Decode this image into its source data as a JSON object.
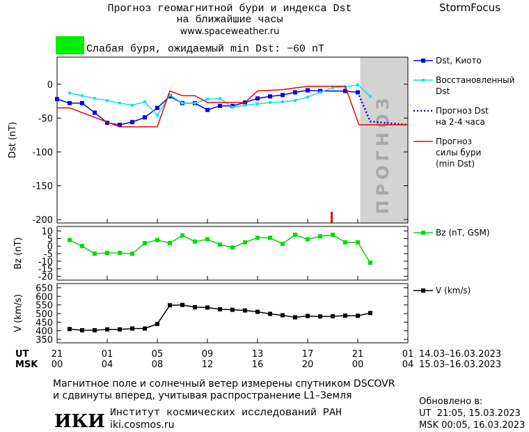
{
  "header": {
    "title": "Прогноз геомагнитной бури и индекса Dst",
    "subtitle": "на ближайшие часы",
    "url": "www.spaceweather.ru",
    "brand": "StormFocus",
    "status": "Слабая буря, ожидаемый min Dst: −60 nT",
    "status_color": "#00ee00"
  },
  "chart_data": [
    {
      "type": "line",
      "y_label": "Dst (nT)",
      "ylim": [
        -205,
        40
      ],
      "yticks": [
        0,
        -50,
        -100,
        -150,
        -200
      ],
      "forecast_label": "ПРОГНОЗ",
      "forecast_start": 24.2,
      "series": [
        {
          "name": [
            "Dst, Киото"
          ],
          "color": "#0000ee",
          "marker": "square",
          "x": [
            0,
            1,
            2,
            3,
            4,
            5,
            6,
            7,
            8,
            9,
            10,
            11,
            12,
            13,
            14,
            15,
            16,
            17,
            18,
            19,
            20,
            21,
            23,
            24
          ],
          "values": [
            -22,
            -28,
            -28,
            -42,
            -57,
            -60,
            -56,
            -49,
            -35,
            -18,
            -28,
            -28,
            -38,
            -32,
            -32,
            -27,
            -21,
            -18,
            -16,
            -12,
            -9,
            -10,
            -10,
            -12
          ]
        },
        {
          "name": [
            "Восстановленный",
            "Dst"
          ],
          "color": "#11e0ee",
          "marker": "small",
          "x": [
            1,
            2,
            3,
            4,
            5,
            6,
            7,
            8,
            9,
            10,
            11,
            12,
            13,
            14,
            15,
            16,
            17,
            18,
            19,
            20,
            21,
            22,
            23,
            24,
            25
          ],
          "values": [
            -13,
            -17,
            -21,
            -24,
            -28,
            -31,
            -26,
            -46,
            -16,
            -28,
            -28,
            -22,
            -21,
            -34,
            -31,
            -29,
            -27,
            -26,
            -24,
            -19,
            -12,
            -5,
            -4,
            -1,
            -18
          ]
        },
        {
          "name": [
            "Прогноз Dst",
            "на 2-4 часа"
          ],
          "color": "#0000cc",
          "dash": true,
          "x": [
            24,
            25,
            28
          ],
          "values": [
            -12,
            -55,
            -60
          ]
        },
        {
          "name": [
            "Прогноз",
            "силы бури",
            "(min Dst)"
          ],
          "color": "#ee0000",
          "x": [
            0,
            1,
            5,
            8,
            9,
            10,
            11,
            12,
            15,
            16,
            18,
            20,
            23,
            24.1,
            28
          ],
          "values": [
            -35,
            -35,
            -63,
            -63,
            -10,
            -17,
            -17,
            -27,
            -27,
            -10,
            -8,
            -3,
            -3,
            -60,
            -60
          ]
        }
      ]
    },
    {
      "type": "line",
      "y_label": "Bz (nT)",
      "ylim": [
        -22.5,
        13
      ],
      "yticks": [
        10,
        5,
        0,
        -5,
        -10,
        -15,
        -20
      ],
      "series": [
        {
          "name": [
            "Bz (nT, GSM)"
          ],
          "color": "#00dd00",
          "marker": "square",
          "x": [
            1,
            2,
            3,
            4,
            5,
            6,
            7,
            8,
            9,
            10,
            11,
            12,
            13,
            14,
            15,
            16,
            17,
            18,
            19,
            20,
            21,
            22,
            23,
            24,
            25
          ],
          "values": [
            4,
            0,
            -5,
            -4.5,
            -4.5,
            -5,
            2,
            4,
            2,
            7,
            3,
            4.5,
            1,
            -1,
            2.5,
            5.5,
            5.5,
            1.5,
            7.5,
            4.5,
            6.5,
            7.5,
            2.5,
            2.5,
            -11
          ]
        }
      ]
    },
    {
      "type": "line",
      "y_label": "V (km/s)",
      "ylim": [
        330,
        674
      ],
      "yticks": [
        650,
        600,
        550,
        500,
        450,
        400,
        350
      ],
      "xlim": [
        0,
        28
      ],
      "xticks": [
        {
          "value": 0,
          "label": "21"
        },
        {
          "value": 4,
          "label": "01"
        },
        {
          "value": 8,
          "label": "05"
        },
        {
          "value": 12,
          "label": "09"
        },
        {
          "value": 16,
          "label": "13"
        },
        {
          "value": 20,
          "label": "17"
        },
        {
          "value": 24,
          "label": "21"
        },
        {
          "value": 28,
          "label": "01"
        }
      ],
      "msk_ticks": [
        "00",
        "04",
        "08",
        "12",
        "16",
        "20",
        "00",
        "04"
      ],
      "ut_label": "UT",
      "msk_label": "MSK",
      "ut_range": "14.03–16.03.2023",
      "msk_range": "15.03–16.03.2023",
      "series": [
        {
          "name": [
            "V (km/s)"
          ],
          "color": "#000000",
          "marker": "square",
          "x": [
            1,
            2,
            3,
            4,
            5,
            6,
            7,
            8,
            9,
            10,
            11,
            12,
            13,
            14,
            15,
            16,
            17,
            18,
            19,
            20,
            21,
            22,
            23,
            24,
            25
          ],
          "values": [
            410,
            403,
            403,
            408,
            408,
            413,
            413,
            440,
            548,
            550,
            537,
            535,
            525,
            522,
            518,
            510,
            498,
            490,
            478,
            486,
            483,
            484,
            488,
            487,
            503
          ]
        }
      ]
    }
  ],
  "footer": {
    "note": [
      "Магнитное поле и солнечный ветер измерены спутником DSCOVR",
      "и сдвинуты вперед, учитывая распространение L1–Земля"
    ],
    "logo": "ИКИ",
    "institute": "Институт космических исследований РАН",
    "site": "iki.cosmos.ru",
    "updated": "Обновлено в:",
    "updated_ut": "UT  21:05, 15.03.2023",
    "updated_msk": "MSK 00:05, 16.03.2023"
  }
}
